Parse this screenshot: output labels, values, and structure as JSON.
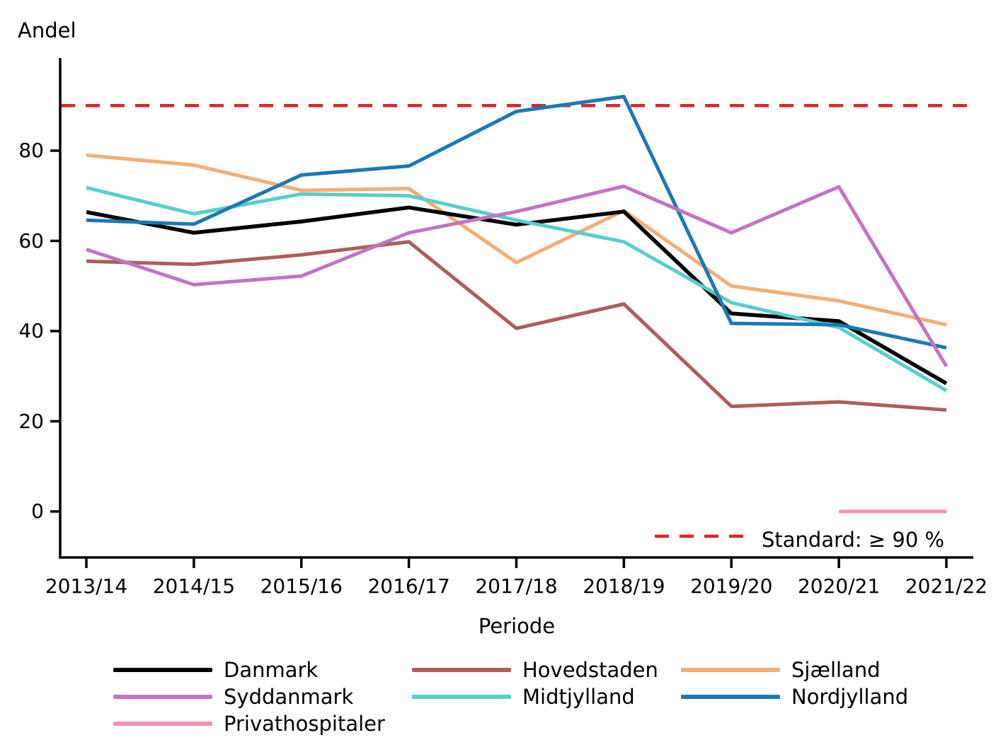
{
  "chart_data": {
    "type": "line",
    "title": "",
    "ylabel": "Andel",
    "xlabel": "Periode",
    "categories": [
      "2013/14",
      "2014/15",
      "2015/16",
      "2016/17",
      "2017/18",
      "2018/19",
      "2019/20",
      "2020/21",
      "2021/22"
    ],
    "y_ticks": [
      0,
      20,
      40,
      60,
      80
    ],
    "ylim": [
      0,
      97
    ],
    "grid": false,
    "legend_position": "bottom",
    "series": [
      {
        "name": "Danmark",
        "color": "#000000",
        "values": [
          66.4,
          61.8,
          64.3,
          67.4,
          63.6,
          66.5,
          43.9,
          42.2,
          28.4
        ]
      },
      {
        "name": "Hovedstaden",
        "color": "#AF5C5C",
        "values": [
          55.5,
          54.8,
          56.9,
          59.8,
          40.6,
          46.0,
          23.3,
          24.3,
          22.5
        ]
      },
      {
        "name": "Sjælland",
        "color": "#F4AD73",
        "values": [
          79.0,
          76.8,
          71.2,
          71.6,
          55.2,
          66.7,
          50.0,
          46.7,
          41.4
        ]
      },
      {
        "name": "Syddanmark",
        "color": "#C273C3",
        "values": [
          58.1,
          50.3,
          52.2,
          61.8,
          66.5,
          72.1,
          61.8,
          72.0,
          32.2
        ]
      },
      {
        "name": "Midtjylland",
        "color": "#57CECE",
        "values": [
          71.8,
          66.0,
          70.4,
          70.0,
          64.6,
          59.8,
          46.3,
          40.8,
          26.8
        ]
      },
      {
        "name": "Nordjylland",
        "color": "#1A79B5",
        "values": [
          64.6,
          63.7,
          74.6,
          76.6,
          88.7,
          92.0,
          41.7,
          41.4,
          36.3
        ]
      },
      {
        "name": "Privathospitaler",
        "color": "#F591B6",
        "values": [
          null,
          null,
          null,
          null,
          null,
          null,
          null,
          0,
          0
        ]
      }
    ],
    "reference_line": {
      "value": 90,
      "label": "Standard: ≥ 90 %",
      "color": "#D9262C",
      "style": "dashed"
    }
  }
}
